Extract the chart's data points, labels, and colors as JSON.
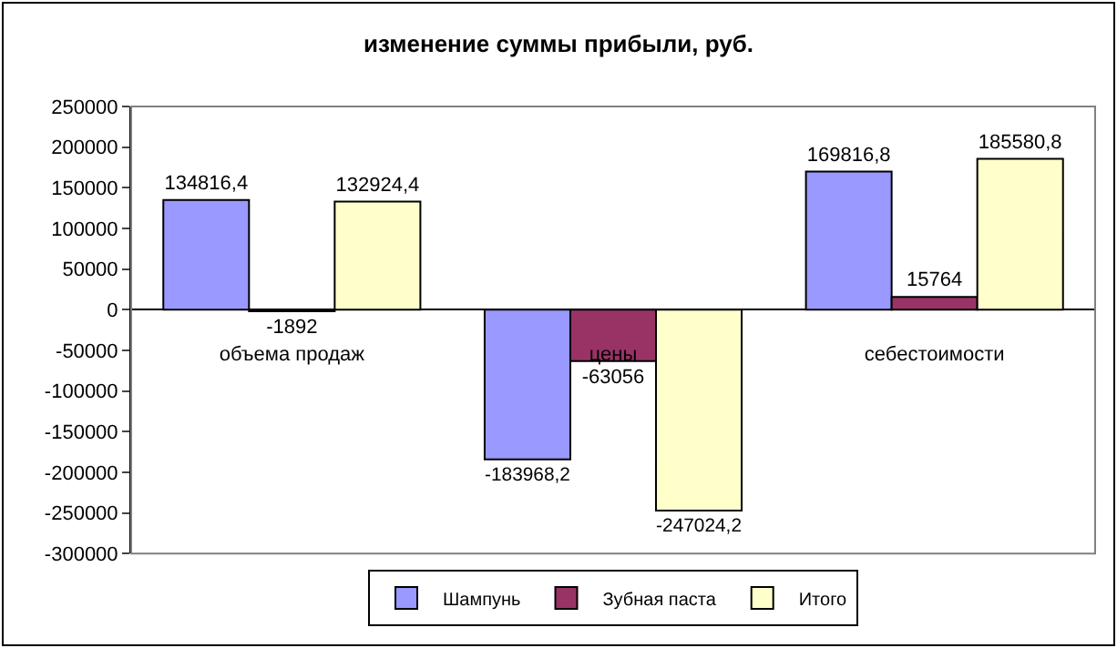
{
  "chart_data": {
    "type": "bar",
    "title": "изменение суммы прибыли, руб.",
    "categories": [
      "объема продаж",
      "цены",
      "себестоимости"
    ],
    "series": [
      {
        "name": "Шампунь",
        "color": "#9999ff",
        "values": [
          134816.4,
          -183968.2,
          169816.8
        ],
        "value_labels": [
          "134816,4",
          "-183968,2",
          "169816,8"
        ]
      },
      {
        "name": "Зубная паста",
        "color": "#993366",
        "values": [
          -1892,
          -63056,
          15764
        ],
        "value_labels": [
          "-1892",
          "-63056",
          "15764"
        ]
      },
      {
        "name": "Итого",
        "color": "#ffffcc",
        "values": [
          132924.4,
          -247024.2,
          185580.8
        ],
        "value_labels": [
          "132924,4",
          "-247024,2",
          "185580,8"
        ]
      }
    ],
    "ylim": [
      -300000,
      250000
    ],
    "yticks": [
      -300000,
      -250000,
      -200000,
      -150000,
      -100000,
      -50000,
      0,
      50000,
      100000,
      150000,
      200000,
      250000
    ],
    "grid": false,
    "legend": "bottom"
  }
}
